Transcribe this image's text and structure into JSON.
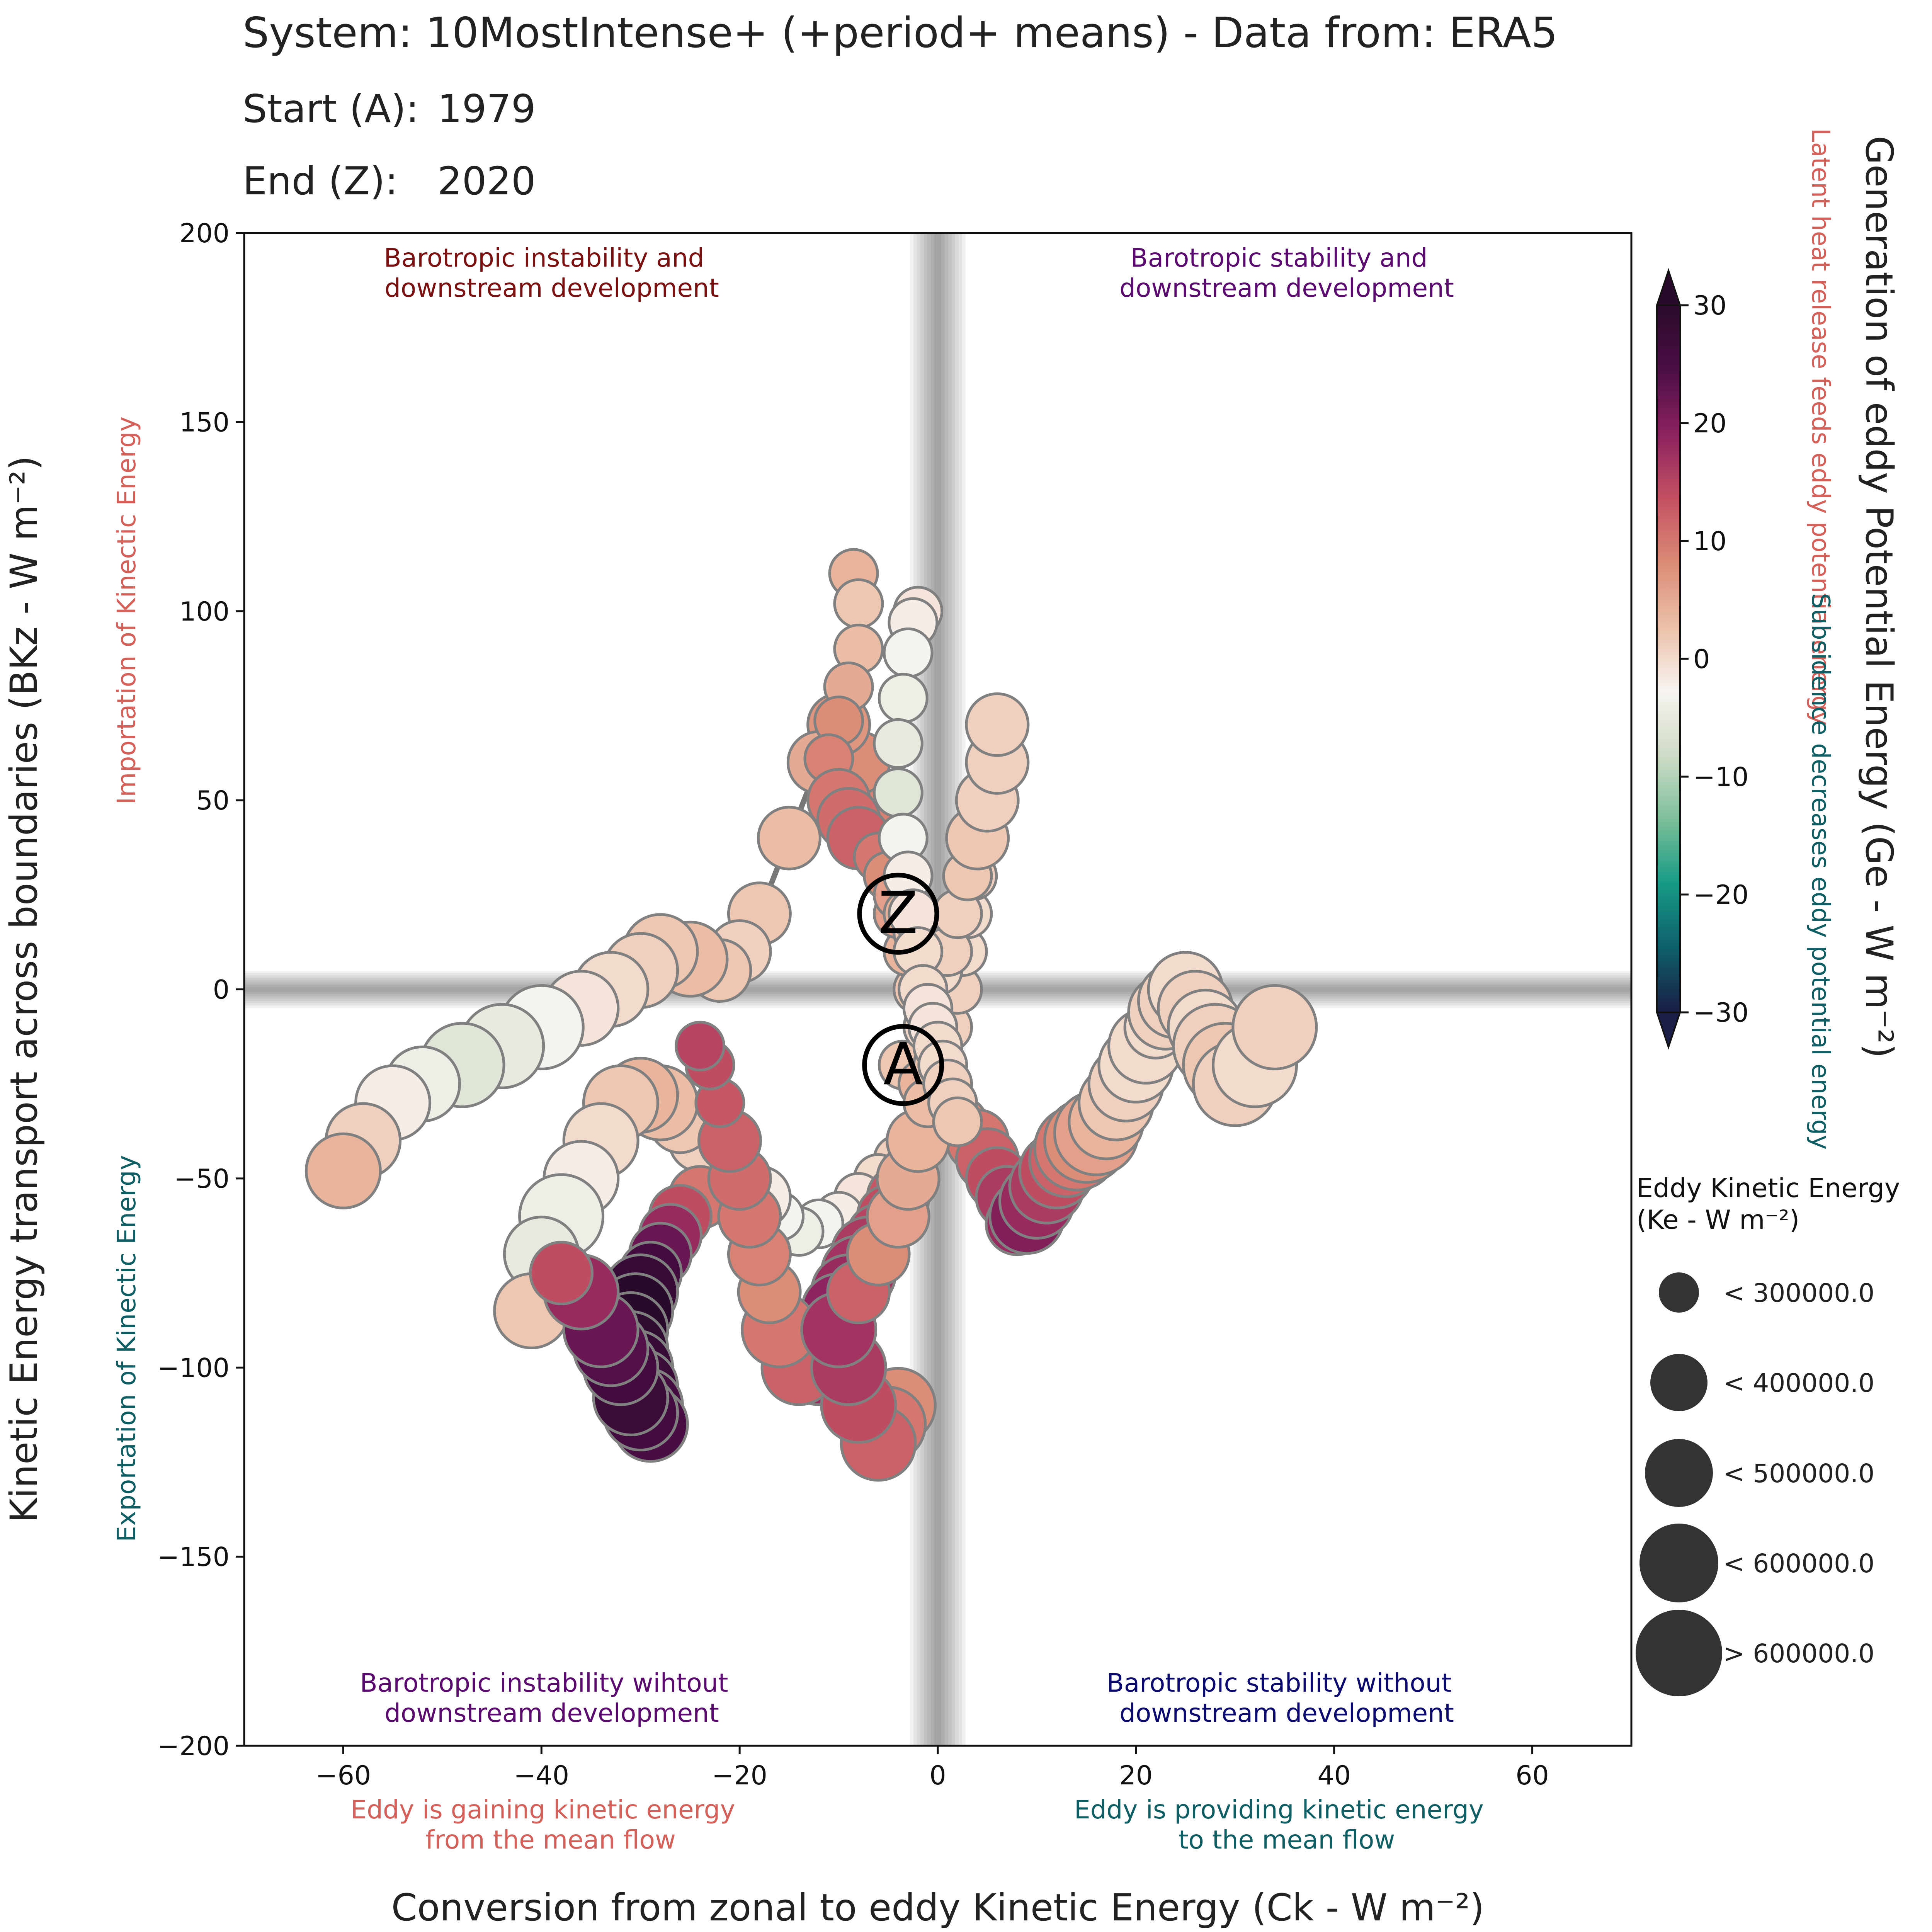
{
  "chart_data": {
    "type": "scatter",
    "header": {
      "system_line": "System: 10MostIntense+ (+period+ means) - Data from: ERA5",
      "start_label": "Start (A):",
      "start_value": "1979",
      "end_label": "End (Z):",
      "end_value": "2020"
    },
    "xlabel": "Conversion from zonal to eddy Kinetic Energy (Ck - W m⁻²)",
    "ylabel": "Kinetic Energy transport across boundaries (BKz - W m⁻²)",
    "colorbar_label": "Generation of eddy Potential Energy (Ge - W m⁻²)",
    "xlim": [
      -70,
      70
    ],
    "ylim": [
      -200,
      200
    ],
    "xticks": [
      -60,
      -40,
      -20,
      0,
      20,
      40,
      60
    ],
    "yticks": [
      -200,
      -150,
      -100,
      -50,
      0,
      50,
      100,
      150,
      200
    ],
    "xtick_labels": [
      "−60",
      "−40",
      "−20",
      "0",
      "20",
      "40",
      "60"
    ],
    "ytick_labels": [
      "−200",
      "−150",
      "−100",
      "−50",
      "0",
      "50",
      "100",
      "150",
      "200"
    ],
    "grid": false,
    "colorbar": {
      "range": [
        -30,
        30
      ],
      "ticks": [
        -30,
        -20,
        -10,
        0,
        10,
        20,
        30
      ],
      "tick_labels": [
        "−30",
        "−20",
        "−10",
        "0",
        "10",
        "20",
        "30"
      ],
      "colors": [
        "#1a1d45",
        "#0e5f6b",
        "#169a85",
        "#7cbf98",
        "#cfdbc6",
        "#f7f4f0",
        "#ecc0a8",
        "#db8b76",
        "#c35062",
        "#8c2260",
        "#4b0e45",
        "#2a0a2b"
      ],
      "upper_note": "Latent heat release feeds eddy potential energy",
      "lower_note": "Subsidence decreases eddy potential energy"
    },
    "quadrant_labels": {
      "top_left": [
        "Barotropic instability and",
        "downstream development"
      ],
      "top_right": [
        "Barotropic stability and",
        "downstream development"
      ],
      "bottom_left": [
        "Barotropic instability wihtout",
        "downstream development"
      ],
      "bottom_right": [
        "Barotropic stability without",
        "downstream development"
      ]
    },
    "axis_notes": {
      "y_positive": "Importation of Kinectic Energy",
      "y_negative": "Exportation of Kinectic Energy",
      "x_negative": [
        "Eddy is gaining kinetic energy",
        "from the mean flow"
      ],
      "x_positive": [
        "Eddy is providing kinetic energy",
        "to the mean flow"
      ]
    },
    "colors": {
      "quad_top_left": "#7b1010",
      "quad_top_right": "#5a0a6e",
      "quad_bottom_left": "#5a0a6e",
      "quad_bottom_right": "#0a0a6e",
      "positive_note": "#d4605a",
      "negative_note": "#0e5e63"
    },
    "size_legend": {
      "title": "Eddy Kinetic Energy",
      "subtitle": "(Ke - W m⁻²)",
      "entries": [
        "< 300000.0",
        "< 400000.0",
        "< 500000.0",
        "< 600000.0",
        "> 600000.0"
      ]
    },
    "start_marker": "A",
    "end_marker": "Z",
    "series": [
      {
        "x": [
          -3.5,
          -1.5,
          0.5,
          2.5,
          4,
          5,
          6,
          7,
          8,
          9,
          10,
          11,
          12,
          13,
          14,
          15,
          16,
          17,
          18,
          19,
          20,
          21,
          22,
          23,
          24,
          25,
          26,
          27,
          28,
          29,
          30,
          32,
          34
        ],
        "y": [
          -20,
          -25,
          -30,
          -35,
          -40,
          -45,
          -50,
          -55,
          -62,
          -60,
          -56,
          -52,
          -48,
          -45,
          -42,
          -40,
          -38,
          -35,
          -30,
          -25,
          -20,
          -15,
          -10,
          -6,
          -3,
          0,
          -5,
          -10,
          -15,
          -20,
          -25,
          -20,
          -10
        ],
        "ge": [
          2,
          4,
          6,
          8,
          10,
          12,
          14,
          16,
          18,
          20,
          18,
          16,
          14,
          12,
          10,
          8,
          6,
          4,
          2,
          1,
          0,
          0,
          0,
          1,
          1,
          0,
          1,
          0,
          1,
          2,
          1,
          0,
          1
        ],
        "ke": [
          300000,
          320000,
          350000,
          380000,
          400000,
          420000,
          440000,
          460000,
          480000,
          500000,
          520000,
          540000,
          560000,
          580000,
          600000,
          620000,
          600000,
          580000,
          560000,
          540000,
          520000,
          500000,
          480000,
          500000,
          520000,
          540000,
          560000,
          580000,
          600000,
          620000,
          640000,
          660000,
          680000
        ]
      },
      {
        "x": [
          0,
          -1,
          -2,
          -3,
          -4,
          -5,
          -6,
          -7,
          -8,
          -10,
          -12,
          -15,
          -18,
          -20,
          -22,
          -25,
          -28,
          -30,
          -33,
          -36,
          -40,
          -44,
          -48,
          -52,
          -55,
          -58,
          -60
        ],
        "y": [
          -20,
          -10,
          0,
          10,
          20,
          30,
          40,
          50,
          60,
          70,
          60,
          40,
          20,
          10,
          5,
          8,
          10,
          5,
          0,
          -5,
          -10,
          -15,
          -20,
          -25,
          -30,
          -40,
          -48
        ],
        "ge": [
          1,
          0,
          2,
          4,
          6,
          8,
          10,
          9,
          8,
          7,
          5,
          3,
          2,
          1,
          2,
          3,
          2,
          1,
          0,
          -1,
          -3,
          -5,
          -6,
          -4,
          -2,
          1,
          4
        ],
        "ke": [
          300000,
          310000,
          330000,
          350000,
          370000,
          390000,
          410000,
          430000,
          420000,
          410000,
          400000,
          420000,
          440000,
          460000,
          480000,
          500000,
          520000,
          540000,
          560000,
          580000,
          600000,
          620000,
          600000,
          580000,
          560000,
          540000,
          520000
        ]
      },
      {
        "x": [
          -2,
          -4,
          -6,
          -8,
          -10,
          -12,
          -14,
          -16,
          -18,
          -20,
          -22,
          -24,
          -26,
          -28,
          -30,
          -32,
          -34,
          -36,
          -38,
          -40,
          -41
        ],
        "y": [
          -40,
          -45,
          -50,
          -55,
          -60,
          -62,
          -64,
          -60,
          -55,
          -50,
          -45,
          -40,
          -35,
          -30,
          -28,
          -30,
          -40,
          -50,
          -60,
          -70,
          -85
        ],
        "ge": [
          0,
          1,
          0,
          -1,
          -2,
          -3,
          -4,
          -3,
          -2,
          -1,
          0,
          1,
          2,
          3,
          4,
          2,
          0,
          -2,
          -4,
          -5,
          2
        ],
        "ke": [
          300000,
          310000,
          320000,
          330000,
          340000,
          350000,
          360000,
          380000,
          400000,
          420000,
          440000,
          460000,
          480000,
          500000,
          520000,
          540000,
          560000,
          580000,
          600000,
          560000,
          520000
        ]
      },
      {
        "x": [
          -24,
          -26,
          -27,
          -28,
          -29,
          -30,
          -30.5,
          -31,
          -31,
          -30.5,
          -30,
          -29.5,
          -29,
          -30,
          -31,
          -32,
          -33,
          -34,
          -36,
          -38
        ],
        "y": [
          -55,
          -60,
          -65,
          -70,
          -75,
          -80,
          -85,
          -90,
          -95,
          -100,
          -105,
          -110,
          -115,
          -112,
          -108,
          -100,
          -95,
          -90,
          -80,
          -75
        ],
        "ge": [
          10,
          14,
          18,
          22,
          26,
          28,
          30,
          30,
          29,
          28,
          27,
          26,
          25,
          26,
          27,
          26,
          24,
          22,
          18,
          14
        ],
        "ke": [
          400000,
          420000,
          440000,
          460000,
          480000,
          500000,
          500000,
          500000,
          500000,
          500000,
          500000,
          500000,
          500000,
          500000,
          500000,
          500000,
          500000,
          500000,
          500000,
          480000
        ]
      },
      {
        "x": [
          -3,
          -4,
          -5,
          -6,
          -7,
          -8,
          -9,
          -10,
          -10,
          -11,
          -12,
          -14,
          -16,
          -17,
          -18,
          -19,
          -20,
          -21,
          -22,
          -23,
          -24
        ],
        "y": [
          -50,
          -55,
          -60,
          -65,
          -70,
          -75,
          -80,
          -85,
          -90,
          -95,
          -100,
          -100,
          -90,
          -80,
          -70,
          -60,
          -50,
          -40,
          -30,
          -20,
          -15
        ],
        "ge": [
          12,
          13,
          14,
          15,
          16,
          17,
          18,
          19,
          20,
          19,
          18,
          12,
          10,
          8,
          9,
          10,
          11,
          12,
          13,
          14,
          15
        ],
        "ke": [
          420000,
          440000,
          460000,
          480000,
          500000,
          520000,
          540000,
          560000,
          580000,
          560000,
          540000,
          520000,
          500000,
          480000,
          460000,
          440000,
          420000,
          400000,
          380000,
          360000,
          340000
        ]
      },
      {
        "x": [
          -4,
          -5,
          -6,
          -8,
          -9,
          -10,
          -8,
          -6,
          -4,
          -3,
          -2,
          -1,
          0,
          1,
          2,
          2.5,
          3,
          3.5,
          4
        ],
        "y": [
          -110,
          -115,
          -120,
          -110,
          -100,
          -90,
          -80,
          -70,
          -60,
          -50,
          -40,
          -30,
          -20,
          -10,
          0,
          10,
          20,
          30,
          40
        ],
        "ge": [
          8,
          10,
          12,
          14,
          16,
          17,
          12,
          8,
          6,
          5,
          4,
          3,
          2,
          1,
          1,
          0,
          0,
          1,
          1
        ],
        "ke": [
          520000,
          540000,
          560000,
          540000,
          520000,
          500000,
          480000,
          460000,
          440000,
          420000,
          400000,
          380000,
          360000,
          340000,
          320000,
          300000,
          300000,
          300000,
          300000
        ]
      },
      {
        "x": [
          -8.5,
          -8,
          -8,
          -9,
          -10,
          -11,
          -10,
          -9,
          -8,
          -6,
          -5,
          -4,
          -3,
          -2,
          -1,
          0,
          1,
          2,
          3,
          4,
          5,
          6,
          6
        ],
        "y": [
          110,
          102,
          90,
          80,
          71,
          61,
          50,
          45,
          40,
          35,
          30,
          25,
          20,
          15,
          10,
          5,
          10,
          20,
          30,
          40,
          50,
          60,
          70
        ],
        "ge": [
          4,
          2,
          3,
          5,
          8,
          9,
          10,
          11,
          12,
          10,
          8,
          6,
          4,
          2,
          1,
          0,
          1,
          1,
          2,
          2,
          1,
          1,
          1
        ],
        "ke": [
          360000,
          360000,
          360000,
          370000,
          380000,
          390000,
          400000,
          400000,
          400000,
          390000,
          380000,
          370000,
          360000,
          350000,
          340000,
          330000,
          340000,
          360000,
          380000,
          400000,
          420000,
          440000,
          460000
        ]
      },
      {
        "x": [
          -2,
          -2.5,
          -3,
          -3.5,
          -4,
          -4,
          -3.5,
          -3,
          -2.5,
          -2,
          -1.5,
          -1,
          -0.5,
          0,
          0.5,
          1,
          1.5,
          2
        ],
        "y": [
          100,
          97,
          89,
          77,
          65,
          52,
          40,
          30,
          20,
          10,
          0,
          -5,
          -10,
          -15,
          -20,
          -25,
          -30,
          -35
        ],
        "ge": [
          -1,
          -2,
          -3,
          -4,
          -5,
          -6,
          -3,
          -2,
          -1,
          0,
          0,
          -1,
          -1,
          0,
          0,
          1,
          1,
          2
        ],
        "ke": [
          300000,
          300000,
          300000,
          300000,
          300000,
          300000,
          300000,
          300000,
          300000,
          300000,
          300000,
          300000,
          300000,
          300000,
          300000,
          300000,
          300000,
          300000
        ]
      }
    ]
  }
}
